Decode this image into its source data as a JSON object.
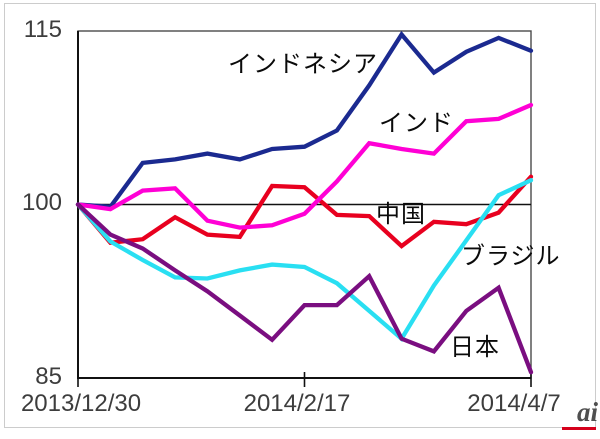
{
  "frame": {
    "background": "#ffffff",
    "border_color": "#cccccc"
  },
  "watermark": {
    "text": "ai",
    "color": "#4f4f4f",
    "accent_color": "#d5001c"
  },
  "chart_data": {
    "type": "line",
    "title": "",
    "ylim": [
      85,
      115
    ],
    "y_tick_labels": [
      "115",
      "100",
      "85"
    ],
    "y_tick_values": [
      115,
      100,
      85
    ],
    "baseline_value": 100,
    "n_points": 15,
    "x_tick_labels": [
      {
        "index": 0,
        "label": "2013/12/30"
      },
      {
        "index": 7,
        "label": "2014/2/17"
      },
      {
        "index": 14,
        "label": "2014/4/7"
      }
    ],
    "grid": "baseline-only",
    "legend": "inline-annotations",
    "axis_color": "#111111",
    "series": [
      {
        "name": "インドネシア",
        "color": "#1b2a90",
        "values": [
          100,
          99.8,
          103.6,
          103.9,
          104.4,
          103.9,
          104.8,
          105.0,
          106.4,
          110.3,
          114.7,
          111.4,
          113.2,
          114.4,
          113.3
        ]
      },
      {
        "name": "中国",
        "color": "#e8001f",
        "values": [
          100,
          96.7,
          97.0,
          98.9,
          97.4,
          97.2,
          101.6,
          101.5,
          99.1,
          99.0,
          96.4,
          98.5,
          98.3,
          99.3,
          102.4
        ]
      },
      {
        "name": "インド",
        "color": "#ff00d5",
        "values": [
          100,
          99.6,
          101.2,
          101.4,
          98.6,
          98.0,
          98.2,
          99.2,
          102.0,
          105.3,
          104.8,
          104.4,
          107.2,
          107.4,
          108.6
        ]
      },
      {
        "name": "ブラジル",
        "color": "#29dff2",
        "values": [
          100,
          96.8,
          95.2,
          93.7,
          93.6,
          94.3,
          94.8,
          94.6,
          93.2,
          90.8,
          88.4,
          93.0,
          96.9,
          100.8,
          102.1
        ]
      },
      {
        "name": "日本",
        "color": "#7a0e80",
        "values": [
          100,
          97.4,
          96.2,
          94.3,
          92.5,
          90.4,
          88.3,
          91.3,
          91.3,
          93.8,
          88.4,
          87.3,
          90.8,
          92.8,
          85.5
        ]
      }
    ]
  }
}
